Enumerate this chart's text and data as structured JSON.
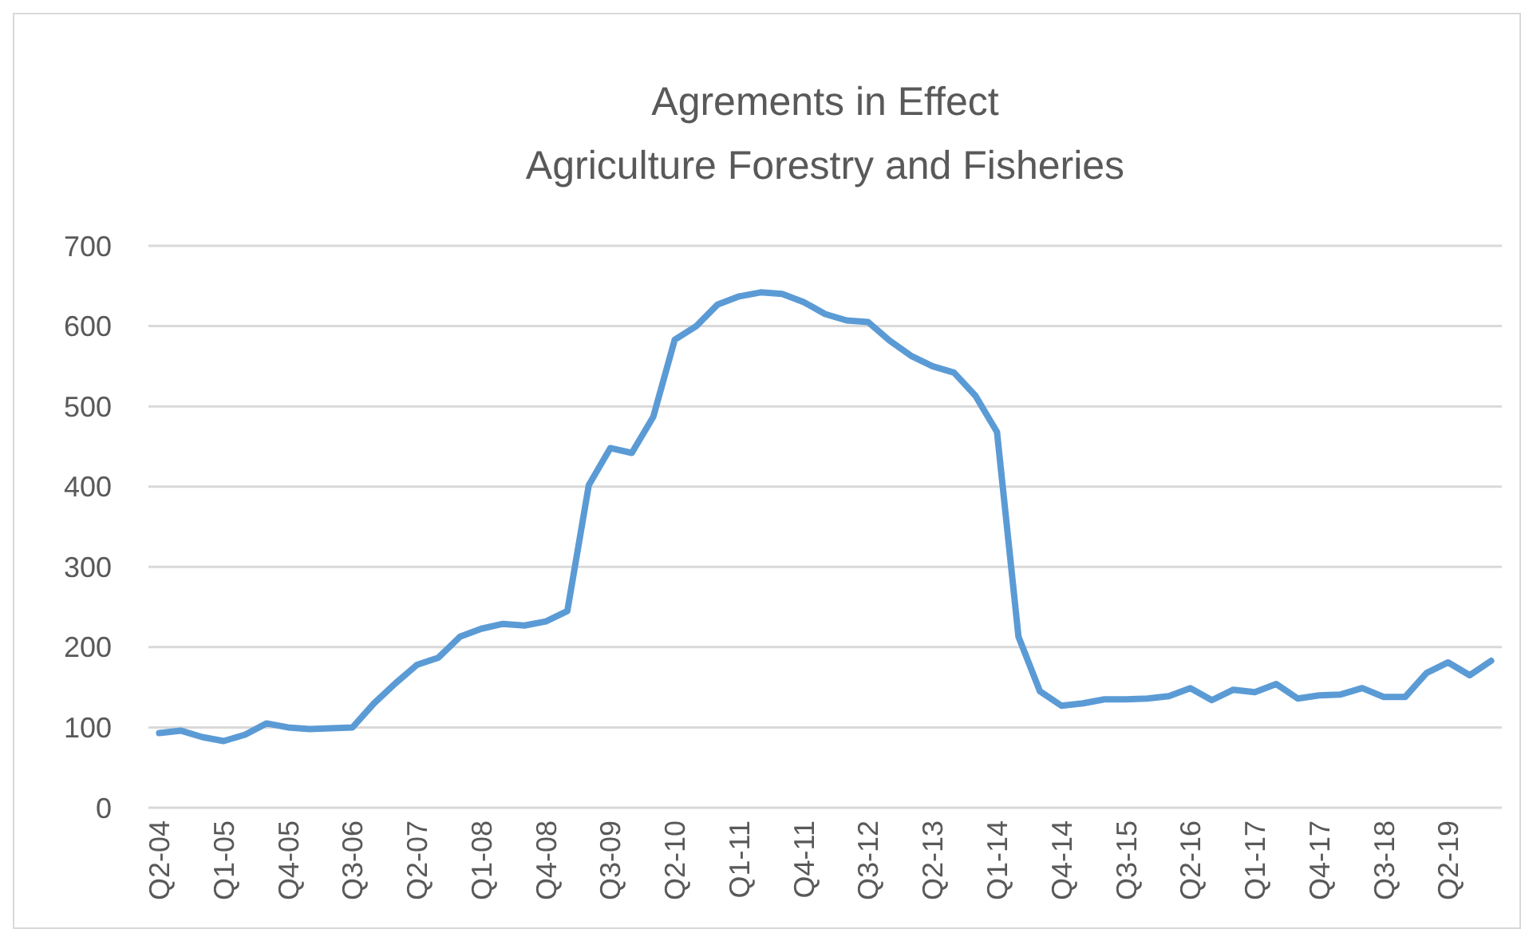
{
  "chart_data": {
    "type": "line",
    "title": "Agrements in Effect",
    "subtitle": "Agriculture Forestry and Fisheries",
    "categories": [
      "Q2-04",
      null,
      null,
      "Q1-05",
      null,
      null,
      "Q4-05",
      null,
      null,
      "Q3-06",
      null,
      null,
      "Q2-07",
      null,
      null,
      "Q1-08",
      null,
      null,
      "Q4-08",
      null,
      null,
      "Q3-09",
      null,
      null,
      "Q2-10",
      null,
      null,
      "Q1-11",
      null,
      null,
      "Q4-11",
      null,
      null,
      "Q3-12",
      null,
      null,
      "Q2-13",
      null,
      null,
      "Q1-14",
      null,
      null,
      "Q4-14",
      null,
      null,
      "Q3-15",
      null,
      null,
      "Q2-16",
      null,
      null,
      "Q1-17",
      null,
      null,
      "Q4-17",
      null,
      null,
      "Q3-18",
      null,
      null,
      "Q2-19",
      null,
      null
    ],
    "series": [
      {
        "color": "#5b9bd5",
        "values": [
          93,
          96,
          88,
          83,
          91,
          105,
          100,
          98,
          99,
          100,
          130,
          155,
          178,
          187,
          213,
          223,
          229,
          227,
          232,
          245,
          402,
          448,
          442,
          487,
          583,
          600,
          627,
          637,
          642,
          640,
          630,
          615,
          607,
          605,
          582,
          563,
          550,
          542,
          513,
          468,
          213,
          145,
          127,
          130,
          135,
          135,
          136,
          139,
          149,
          134,
          147,
          144,
          154,
          136,
          140,
          141,
          149,
          138,
          138,
          168,
          181,
          165,
          183
        ]
      }
    ],
    "ylim": [
      0,
      700
    ],
    "yticks": [
      0,
      100,
      200,
      300,
      400,
      500,
      600,
      700
    ],
    "grid": "y",
    "marker": "none",
    "line_style": "solid"
  }
}
